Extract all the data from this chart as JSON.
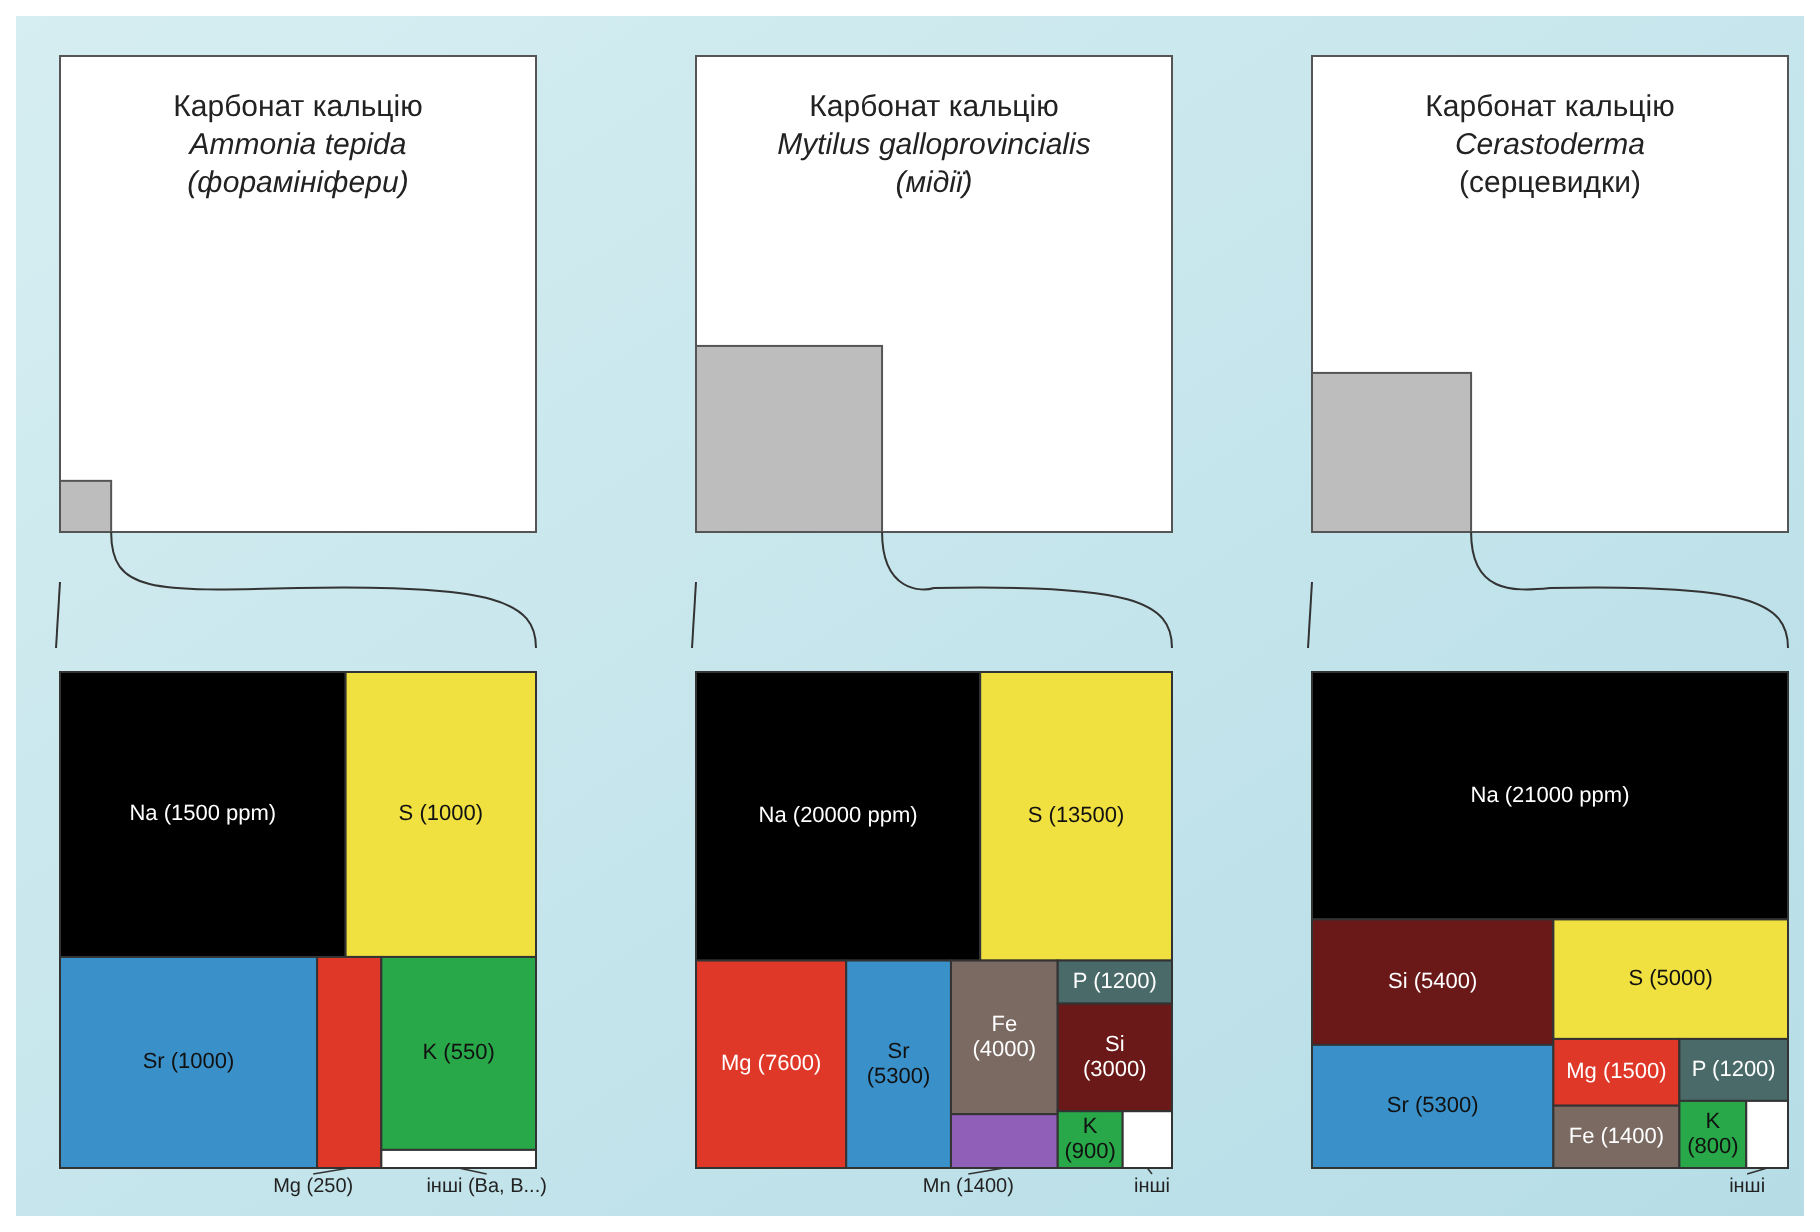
{
  "chart_data": [
    {
      "type": "other",
      "title": "Карбонат кальцію",
      "subtitle": "Ammonia tepida",
      "annotations": [
        "(форамініфери)"
      ],
      "categories": [
        "Na",
        "S",
        "Sr",
        "Mg",
        "K",
        "інші (Ba, B...)"
      ],
      "values": [
        1500,
        1000,
        1000,
        250,
        550,
        null
      ],
      "value_labels": [
        "(1500 ppm)",
        "(1000)",
        "(1000)",
        "(250)",
        "(550)",
        null
      ],
      "colors": [
        "#000000",
        "#f0e040",
        "#3a90c8",
        "#e03828",
        "#28a848",
        "#ffffff"
      ]
    },
    {
      "type": "other",
      "title": "Карбонат кальцію",
      "subtitle": "Mytilus galloprovincialis",
      "annotations": [
        "(мідії)"
      ],
      "categories": [
        "Na",
        "S",
        "Mg",
        "Sr",
        "Fe",
        "Mn",
        "P",
        "Si",
        "K",
        "інші"
      ],
      "values": [
        20000,
        13500,
        7600,
        5300,
        4000,
        1400,
        1200,
        3000,
        900,
        null
      ],
      "value_labels": [
        "(20000 ppm)",
        "(13500)",
        "(7600)",
        "(5300)",
        "(4000)",
        "(1400)",
        "(1200)",
        "(3000)",
        "(900)",
        null
      ],
      "colors": [
        "#000000",
        "#f0e040",
        "#e03828",
        "#3a90c8",
        "#7a6a62",
        "#9060b8",
        "#4a6a6a",
        "#6a1818",
        "#28a848",
        "#ffffff"
      ]
    },
    {
      "type": "other",
      "title": "Карбонат кальцію",
      "subtitle": "Cerastoderma",
      "annotations": [
        "(серцевидки)"
      ],
      "categories": [
        "Na",
        "Si",
        "Sr",
        "S",
        "Mg",
        "Fe",
        "P",
        "K",
        "інші"
      ],
      "values": [
        21000,
        5400,
        5300,
        5000,
        1500,
        1400,
        1200,
        800,
        null
      ],
      "value_labels": [
        "(21000 ppm)",
        "(5400)",
        "(5300)",
        "(5000)",
        "(1500)",
        "(1400)",
        "(1200)",
        "(800)",
        null
      ],
      "colors": [
        "#000000",
        "#6a1818",
        "#3a90c8",
        "#f0e040",
        "#e03828",
        "#7a6a62",
        "#4a6a6a",
        "#28a848",
        "#ffffff"
      ]
    }
  ]
}
